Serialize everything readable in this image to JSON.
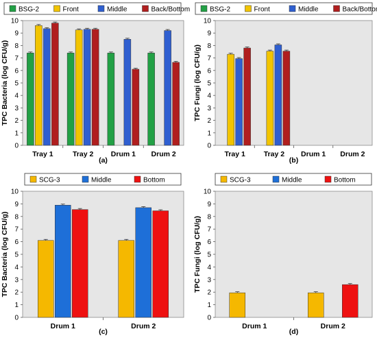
{
  "chart_data": [
    {
      "type": "bar",
      "panel_label": "(a)",
      "ylabel": "TPC Bacteria (log CFU/g)",
      "ylim": [
        0,
        10
      ],
      "yticks": [
        0,
        1,
        2,
        3,
        4,
        5,
        6,
        7,
        8,
        9,
        10
      ],
      "grid": false,
      "legend": "top",
      "categories": [
        "Tray 1",
        "Tray 2",
        "Drum 1",
        "Drum 2"
      ],
      "series": [
        {
          "name": "BSG-2",
          "color": "#22a045",
          "values": [
            7.4,
            7.4,
            7.4,
            7.4
          ]
        },
        {
          "name": "Front",
          "color": "#f2c400",
          "values": [
            9.6,
            9.25,
            null,
            null
          ]
        },
        {
          "name": "Middle",
          "color": "#2f5fd0",
          "values": [
            9.35,
            9.3,
            8.5,
            9.2
          ]
        },
        {
          "name": "Back/Bottom",
          "color": "#b01e1e",
          "values": [
            9.8,
            9.3,
            6.1,
            6.65
          ]
        }
      ]
    },
    {
      "type": "bar",
      "panel_label": "(b)",
      "ylabel": "TPC Fungi (log CFU/g)",
      "ylim": [
        0,
        10
      ],
      "yticks": [
        0,
        1,
        2,
        3,
        4,
        5,
        6,
        7,
        8,
        9,
        10
      ],
      "grid": false,
      "legend": "top",
      "categories": [
        "Tray 1",
        "Tray 2",
        "Drum 1",
        "Drum 2"
      ],
      "series": [
        {
          "name": "BSG-2",
          "color": "#22a045",
          "values": [
            null,
            null,
            null,
            null
          ]
        },
        {
          "name": "Front",
          "color": "#f2c400",
          "values": [
            7.3,
            7.55,
            null,
            null
          ]
        },
        {
          "name": "Middle",
          "color": "#2f5fd0",
          "values": [
            6.95,
            8.05,
            null,
            null
          ]
        },
        {
          "name": "Back/Bottom",
          "color": "#b01e1e",
          "values": [
            7.8,
            7.55,
            null,
            null
          ]
        }
      ]
    },
    {
      "type": "bar",
      "panel_label": "(c)",
      "ylabel": "TPC Bacteria (log CFU/g)",
      "ylim": [
        0,
        10
      ],
      "yticks": [
        0,
        1,
        2,
        3,
        4,
        5,
        6,
        7,
        8,
        9,
        10
      ],
      "grid": false,
      "legend": "top",
      "categories": [
        "Drum 1",
        "Drum 2"
      ],
      "series": [
        {
          "name": "SCG-3",
          "color": "#f5b800",
          "values": [
            6.1,
            6.1
          ]
        },
        {
          "name": "Middle",
          "color": "#1e6fd8",
          "values": [
            8.9,
            8.7
          ]
        },
        {
          "name": "Bottom",
          "color": "#ee1111",
          "values": [
            8.55,
            8.45
          ]
        }
      ]
    },
    {
      "type": "bar",
      "panel_label": "(d)",
      "ylabel": "TPC Fungi (log CFU/g)",
      "ylim": [
        0,
        10
      ],
      "yticks": [
        0,
        1,
        2,
        3,
        4,
        5,
        6,
        7,
        8,
        9,
        10
      ],
      "grid": false,
      "legend": "top",
      "categories": [
        "Drum 1",
        "Drum 2"
      ],
      "series": [
        {
          "name": "SCG-3",
          "color": "#f5b800",
          "values": [
            1.95,
            1.95
          ]
        },
        {
          "name": "Middle",
          "color": "#1e6fd8",
          "values": [
            null,
            null
          ]
        },
        {
          "name": "Bottom",
          "color": "#ee1111",
          "values": [
            null,
            2.6
          ]
        }
      ]
    }
  ]
}
